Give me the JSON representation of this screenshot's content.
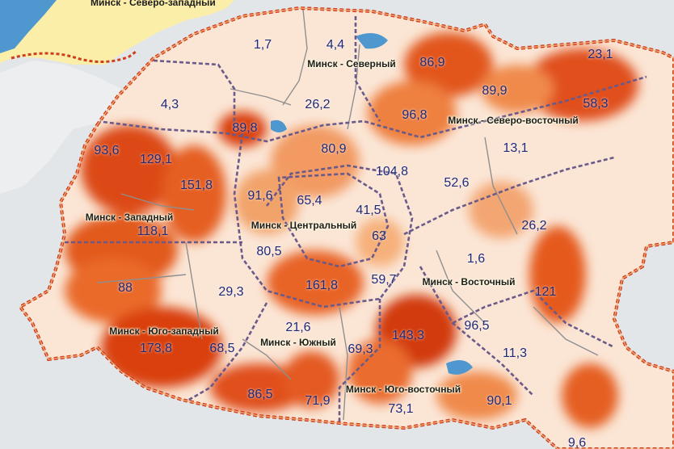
{
  "colors": {
    "background": "#e3e6e8",
    "water": "#4f97cf",
    "land_outside": "#eceef0",
    "northwest_zone": "#fbeea8",
    "city_fill": "#fbe6d6",
    "hot_low": "#f6b07a",
    "hot_high": "#d9400f",
    "boundary_outer": "#cf3f1c",
    "boundary_inner": "#6a5a8a",
    "district_line": "#8f8f8f",
    "value_text": "#1f2a78"
  },
  "northwest_label": "Минск - Северо-западный",
  "districts": [
    {
      "name": "Минск - Северный"
    },
    {
      "name": "Минск - Северо-восточный"
    },
    {
      "name": "Минск - Западный"
    },
    {
      "name": "Минск - Центральный"
    },
    {
      "name": "Минск - Восточный"
    },
    {
      "name": "Минск - Юго-западный"
    },
    {
      "name": "Минск - Южный"
    },
    {
      "name": "Минск - Юго-восточный"
    }
  ],
  "values": [
    "1,7",
    "4,4",
    "86,9",
    "23,1",
    "4,3",
    "26,2",
    "89,9",
    "58,3",
    "96,8",
    "89,8",
    "80,9",
    "93,6",
    "129,1",
    "13,1",
    "104,8",
    "151,8",
    "91,6",
    "65,4",
    "41,5",
    "52,6",
    "118,1",
    "63",
    "26,2",
    "80,5",
    "1,6",
    "59,7",
    "88",
    "29,3",
    "161,8",
    "121",
    "21,6",
    "96,5",
    "173,8",
    "68,5",
    "143,3",
    "69,3",
    "11,3",
    "86,5",
    "71,9",
    "73,1",
    "90,1",
    "9,6"
  ]
}
